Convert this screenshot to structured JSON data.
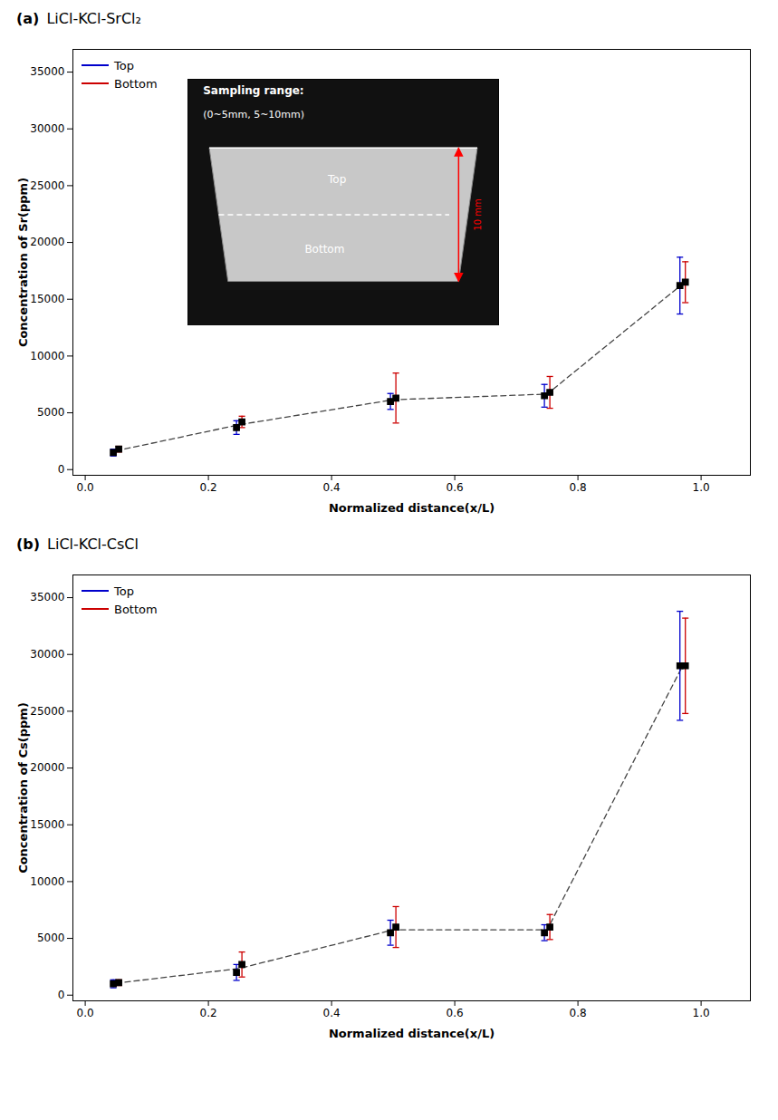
{
  "chart_data": [
    {
      "type": "scatter",
      "title": "(a)",
      "subtitle": "LiCl-KCl-SrCl₂",
      "xlabel": "Normalized distance(x/L)",
      "ylabel": "Concentration of Sr(ppm)",
      "x": [
        0.05,
        0.25,
        0.5,
        0.75,
        0.97
      ],
      "series": [
        {
          "name": "Top",
          "color": "#0000cc",
          "values": [
            1500,
            3700,
            6000,
            6500,
            16200
          ],
          "errors": [
            300,
            600,
            700,
            1000,
            2500
          ]
        },
        {
          "name": "Bottom",
          "color": "#cc0000",
          "values": [
            1800,
            4200,
            6300,
            6800,
            16500
          ],
          "errors": [
            250,
            500,
            2200,
            1400,
            1800
          ]
        }
      ],
      "dashed_line": {
        "values": [
          1650,
          3950,
          6150,
          6650,
          16350
        ],
        "color": "#444444",
        "line_style": "dashed"
      },
      "markers": {
        "marker": "square",
        "color": "#000000"
      },
      "xlim": [
        -0.02,
        1.08
      ],
      "xticks": [
        {
          "value": 0.0,
          "label": "0.0"
        },
        0.2,
        0.4,
        0.6,
        0.8,
        {
          "value": 1.0,
          "label": "1.0"
        }
      ],
      "ylim": [
        -500,
        37000
      ],
      "yticks": [
        0,
        5000,
        10000,
        15000,
        20000,
        25000,
        30000,
        35000
      ],
      "grid": false,
      "legend": "upper left",
      "annotations": [
        "Sampling range:",
        "(0~5mm, 5~10mm)",
        "Top",
        "Bottom",
        "10 mm"
      ]
    },
    {
      "type": "scatter",
      "title": "(b)",
      "subtitle": "LiCl-KCl-CsCl",
      "xlabel": "Normalized distance(x/L)",
      "ylabel": "Concentration of Cs(ppm)",
      "x": [
        0.05,
        0.25,
        0.5,
        0.75,
        0.97
      ],
      "series": [
        {
          "name": "Top",
          "color": "#0000cc",
          "values": [
            1000,
            2000,
            5500,
            5500,
            29000
          ],
          "errors": [
            350,
            700,
            1100,
            700,
            4800
          ]
        },
        {
          "name": "Bottom",
          "color": "#cc0000",
          "values": [
            1100,
            2700,
            6000,
            6000,
            29000
          ],
          "errors": [
            250,
            1100,
            1800,
            1100,
            4200
          ]
        }
      ],
      "dashed_line": {
        "values": [
          1050,
          2350,
          5750,
          5750,
          29000
        ],
        "color": "#444444",
        "line_style": "dashed"
      },
      "markers": {
        "marker": "square",
        "color": "#000000"
      },
      "xlim": [
        -0.02,
        1.08
      ],
      "xticks": [
        {
          "value": 0.0,
          "label": "0.0"
        },
        0.2,
        0.4,
        0.6,
        0.8,
        {
          "value": 1.0,
          "label": "1.0"
        }
      ],
      "ylim": [
        -500,
        37000
      ],
      "yticks": [
        0,
        5000,
        10000,
        15000,
        20000,
        25000,
        30000,
        35000
      ],
      "grid": false,
      "legend": "upper left"
    }
  ]
}
